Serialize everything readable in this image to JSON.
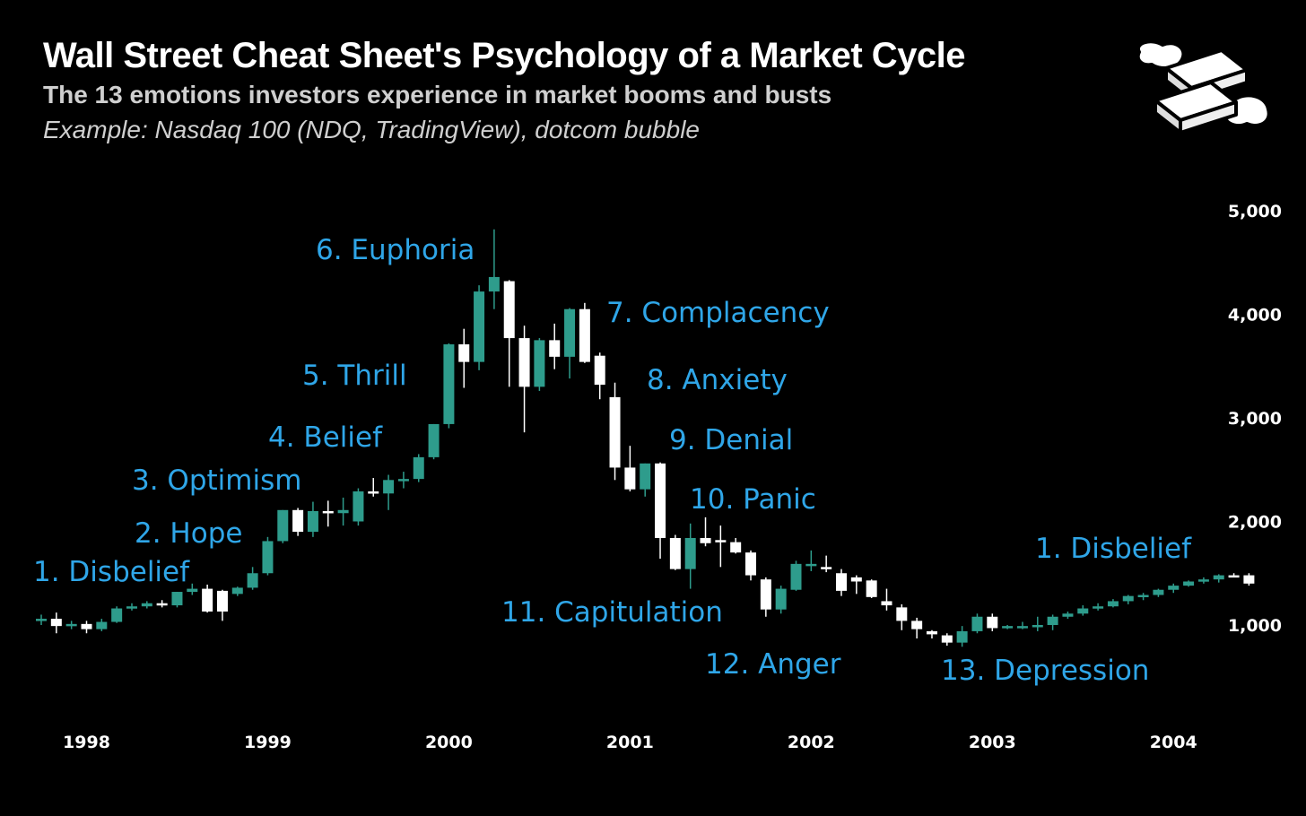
{
  "header": {
    "title": "Wall Street Cheat Sheet's Psychology of a Market Cycle",
    "subtitle": "The 13 emotions investors experience in market booms and busts",
    "example": "Example: Nasdaq 100 (NDQ, TradingView), dotcom bubble"
  },
  "colors": {
    "up": "#2e9c8c",
    "down": "#ffffff",
    "label": "#2fa6e8",
    "background": "#000000"
  },
  "chart_data": {
    "type": "candlestick",
    "title": "Wall Street Cheat Sheet's Psychology of a Market Cycle",
    "subtitle": "The 13 emotions investors experience in market booms and busts",
    "x_start": "1997-10",
    "x_ticks": [
      "1998",
      "1999",
      "2000",
      "2001",
      "2002",
      "2003",
      "2004"
    ],
    "y_ticks": [
      {
        "value": 1000,
        "label": "1,000"
      },
      {
        "value": 2000,
        "label": "2,000"
      },
      {
        "value": 3000,
        "label": "3,000"
      },
      {
        "value": 4000,
        "label": "4,000"
      },
      {
        "value": 5000,
        "label": "5,000"
      }
    ],
    "ylim": [
      0,
      5200
    ],
    "grid": false,
    "candles": [
      {
        "date": "1997-10",
        "o": 1040,
        "h": 1100,
        "l": 1000,
        "c": 1060
      },
      {
        "date": "1997-11",
        "o": 1060,
        "h": 1120,
        "l": 920,
        "c": 990
      },
      {
        "date": "1997-12",
        "o": 990,
        "h": 1040,
        "l": 960,
        "c": 1010
      },
      {
        "date": "1998-01",
        "o": 1010,
        "h": 1040,
        "l": 920,
        "c": 960
      },
      {
        "date": "1998-02",
        "o": 960,
        "h": 1060,
        "l": 940,
        "c": 1030
      },
      {
        "date": "1998-03",
        "o": 1030,
        "h": 1180,
        "l": 1020,
        "c": 1160
      },
      {
        "date": "1998-04",
        "o": 1160,
        "h": 1210,
        "l": 1140,
        "c": 1180
      },
      {
        "date": "1998-05",
        "o": 1180,
        "h": 1230,
        "l": 1160,
        "c": 1210
      },
      {
        "date": "1998-06",
        "o": 1210,
        "h": 1240,
        "l": 1170,
        "c": 1190
      },
      {
        "date": "1998-07",
        "o": 1190,
        "h": 1320,
        "l": 1170,
        "c": 1320
      },
      {
        "date": "1998-08",
        "o": 1320,
        "h": 1400,
        "l": 1290,
        "c": 1350
      },
      {
        "date": "1998-09",
        "o": 1350,
        "h": 1390,
        "l": 1120,
        "c": 1130
      },
      {
        "date": "1998-10",
        "o": 1330,
        "h": 1340,
        "l": 1040,
        "c": 1130
      },
      {
        "date": "1998-11",
        "o": 1300,
        "h": 1370,
        "l": 1280,
        "c": 1360
      },
      {
        "date": "1998-12",
        "o": 1360,
        "h": 1560,
        "l": 1340,
        "c": 1500
      },
      {
        "date": "1999-01",
        "o": 1500,
        "h": 1850,
        "l": 1480,
        "c": 1810
      },
      {
        "date": "1999-02",
        "o": 1810,
        "h": 2110,
        "l": 1790,
        "c": 2110
      },
      {
        "date": "1999-03",
        "o": 2110,
        "h": 2130,
        "l": 1860,
        "c": 1900
      },
      {
        "date": "1999-04",
        "o": 1900,
        "h": 2190,
        "l": 1850,
        "c": 2100
      },
      {
        "date": "1999-05",
        "o": 2100,
        "h": 2200,
        "l": 1950,
        "c": 2080
      },
      {
        "date": "1999-06",
        "o": 2080,
        "h": 2230,
        "l": 1960,
        "c": 2110
      },
      {
        "date": "1999-07",
        "o": 2000,
        "h": 2320,
        "l": 1960,
        "c": 2290
      },
      {
        "date": "1999-08",
        "o": 2290,
        "h": 2420,
        "l": 2240,
        "c": 2270
      },
      {
        "date": "1999-09",
        "o": 2270,
        "h": 2450,
        "l": 2110,
        "c": 2400
      },
      {
        "date": "1999-10",
        "o": 2400,
        "h": 2480,
        "l": 2320,
        "c": 2410
      },
      {
        "date": "1999-11",
        "o": 2410,
        "h": 2650,
        "l": 2380,
        "c": 2620
      },
      {
        "date": "1999-12",
        "o": 2620,
        "h": 2940,
        "l": 2600,
        "c": 2940
      },
      {
        "date": "2000-01",
        "o": 2940,
        "h": 3720,
        "l": 2900,
        "c": 3710
      },
      {
        "date": "2000-02",
        "o": 3710,
        "h": 3860,
        "l": 3290,
        "c": 3540
      },
      {
        "date": "2000-03",
        "o": 3540,
        "h": 4280,
        "l": 3460,
        "c": 4220
      },
      {
        "date": "2000-04",
        "o": 4220,
        "h": 4820,
        "l": 4050,
        "c": 4360
      },
      {
        "date": "2000-05",
        "o": 4320,
        "h": 4330,
        "l": 3300,
        "c": 3770
      },
      {
        "date": "2000-06",
        "o": 3770,
        "h": 3890,
        "l": 2860,
        "c": 3300
      },
      {
        "date": "2000-07",
        "o": 3300,
        "h": 3770,
        "l": 3260,
        "c": 3750
      },
      {
        "date": "2000-08",
        "o": 3750,
        "h": 3910,
        "l": 3470,
        "c": 3590
      },
      {
        "date": "2000-09",
        "o": 3590,
        "h": 4060,
        "l": 3380,
        "c": 4050
      },
      {
        "date": "2000-10",
        "o": 4050,
        "h": 4110,
        "l": 3530,
        "c": 3540
      },
      {
        "date": "2000-11",
        "o": 3600,
        "h": 3630,
        "l": 3180,
        "c": 3320
      },
      {
        "date": "2000-12",
        "o": 3200,
        "h": 3340,
        "l": 2400,
        "c": 2520
      },
      {
        "date": "2001-01",
        "o": 2520,
        "h": 2730,
        "l": 2290,
        "c": 2310
      },
      {
        "date": "2001-02",
        "o": 2310,
        "h": 2560,
        "l": 2240,
        "c": 2560
      },
      {
        "date": "2001-03",
        "o": 2560,
        "h": 2570,
        "l": 1640,
        "c": 1840
      },
      {
        "date": "2001-04",
        "o": 1840,
        "h": 1870,
        "l": 1530,
        "c": 1540
      },
      {
        "date": "2001-05",
        "o": 1540,
        "h": 1980,
        "l": 1350,
        "c": 1840
      },
      {
        "date": "2001-06",
        "o": 1840,
        "h": 2040,
        "l": 1760,
        "c": 1790
      },
      {
        "date": "2001-07",
        "o": 1820,
        "h": 1960,
        "l": 1560,
        "c": 1800
      },
      {
        "date": "2001-08",
        "o": 1800,
        "h": 1840,
        "l": 1690,
        "c": 1700
      },
      {
        "date": "2001-09",
        "o": 1700,
        "h": 1720,
        "l": 1430,
        "c": 1480
      },
      {
        "date": "2001-10",
        "o": 1440,
        "h": 1460,
        "l": 1080,
        "c": 1150
      },
      {
        "date": "2001-11",
        "o": 1150,
        "h": 1380,
        "l": 1110,
        "c": 1350
      },
      {
        "date": "2001-12",
        "o": 1340,
        "h": 1620,
        "l": 1330,
        "c": 1590
      },
      {
        "date": "2002-01",
        "o": 1590,
        "h": 1720,
        "l": 1520,
        "c": 1590
      },
      {
        "date": "2002-02",
        "o": 1560,
        "h": 1670,
        "l": 1510,
        "c": 1540
      },
      {
        "date": "2002-03",
        "o": 1500,
        "h": 1540,
        "l": 1280,
        "c": 1330
      },
      {
        "date": "2002-04",
        "o": 1460,
        "h": 1480,
        "l": 1300,
        "c": 1420
      },
      {
        "date": "2002-05",
        "o": 1430,
        "h": 1440,
        "l": 1260,
        "c": 1270
      },
      {
        "date": "2002-06",
        "o": 1230,
        "h": 1350,
        "l": 1140,
        "c": 1190
      },
      {
        "date": "2002-07",
        "o": 1170,
        "h": 1200,
        "l": 950,
        "c": 1040
      },
      {
        "date": "2002-08",
        "o": 1040,
        "h": 1070,
        "l": 870,
        "c": 960
      },
      {
        "date": "2002-09",
        "o": 940,
        "h": 950,
        "l": 870,
        "c": 910
      },
      {
        "date": "2002-10",
        "o": 900,
        "h": 920,
        "l": 800,
        "c": 830
      },
      {
        "date": "2002-11",
        "o": 830,
        "h": 990,
        "l": 790,
        "c": 940
      },
      {
        "date": "2002-12",
        "o": 940,
        "h": 1110,
        "l": 920,
        "c": 1080
      },
      {
        "date": "2003-01",
        "o": 1080,
        "h": 1110,
        "l": 940,
        "c": 970
      },
      {
        "date": "2003-02",
        "o": 970,
        "h": 1000,
        "l": 960,
        "c": 990
      },
      {
        "date": "2003-03",
        "o": 990,
        "h": 1030,
        "l": 960,
        "c": 990
      },
      {
        "date": "2003-04",
        "o": 980,
        "h": 1080,
        "l": 940,
        "c": 1000
      },
      {
        "date": "2003-05",
        "o": 1000,
        "h": 1100,
        "l": 950,
        "c": 1080
      },
      {
        "date": "2003-06",
        "o": 1080,
        "h": 1130,
        "l": 1060,
        "c": 1110
      },
      {
        "date": "2003-07",
        "o": 1110,
        "h": 1190,
        "l": 1090,
        "c": 1160
      },
      {
        "date": "2003-08",
        "o": 1160,
        "h": 1210,
        "l": 1140,
        "c": 1180
      },
      {
        "date": "2003-09",
        "o": 1180,
        "h": 1250,
        "l": 1170,
        "c": 1230
      },
      {
        "date": "2003-10",
        "o": 1230,
        "h": 1290,
        "l": 1200,
        "c": 1280
      },
      {
        "date": "2003-11",
        "o": 1280,
        "h": 1310,
        "l": 1240,
        "c": 1290
      },
      {
        "date": "2003-12",
        "o": 1290,
        "h": 1350,
        "l": 1270,
        "c": 1340
      },
      {
        "date": "2004-01",
        "o": 1340,
        "h": 1400,
        "l": 1310,
        "c": 1380
      },
      {
        "date": "2004-02",
        "o": 1380,
        "h": 1430,
        "l": 1370,
        "c": 1420
      },
      {
        "date": "2004-03",
        "o": 1420,
        "h": 1460,
        "l": 1400,
        "c": 1440
      },
      {
        "date": "2004-04",
        "o": 1440,
        "h": 1490,
        "l": 1410,
        "c": 1480
      },
      {
        "date": "2004-05",
        "o": 1480,
        "h": 1500,
        "l": 1460,
        "c": 1470
      },
      {
        "date": "2004-06",
        "o": 1480,
        "h": 1500,
        "l": 1380,
        "c": 1400
      }
    ],
    "annotations": [
      {
        "text": "1. Disbelief"
      },
      {
        "text": "2. Hope"
      },
      {
        "text": "3. Optimism"
      },
      {
        "text": "4. Belief"
      },
      {
        "text": "5. Thrill"
      },
      {
        "text": "6. Euphoria"
      },
      {
        "text": "7. Complacency"
      },
      {
        "text": "8. Anxiety"
      },
      {
        "text": "9. Denial"
      },
      {
        "text": "10. Panic"
      },
      {
        "text": "11. Capitulation"
      },
      {
        "text": "12. Anger"
      },
      {
        "text": "13. Depression"
      },
      {
        "text": "1. Disbelief"
      }
    ]
  }
}
